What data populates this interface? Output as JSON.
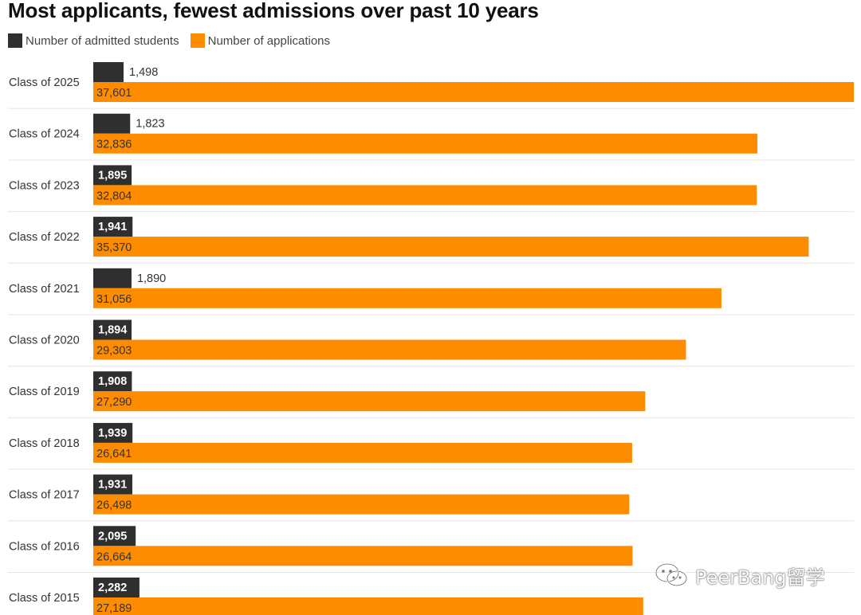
{
  "colors": {
    "admitted": "#2f2f2f",
    "applications": "#fd8c00",
    "divider": "#e6e6e6",
    "label": "#333333"
  },
  "watermark": {
    "text": "PeerBang留学",
    "icon": "chat-bubbles-icon"
  },
  "chart_data": {
    "type": "bar",
    "orientation": "horizontal",
    "title": "Most applicants, fewest admissions over past 10 years",
    "categories": [
      "Class of 2025",
      "Class of 2024",
      "Class of 2023",
      "Class of 2022",
      "Class of 2021",
      "Class of 2020",
      "Class of 2019",
      "Class of 2018",
      "Class of 2017",
      "Class of 2016",
      "Class of 2015"
    ],
    "series": [
      {
        "name": "Number of admitted students",
        "values": [
          1498,
          1823,
          1895,
          1941,
          1890,
          1894,
          1908,
          1939,
          1931,
          2095,
          2282
        ],
        "labels": [
          "1,498",
          "1,823",
          "1,895",
          "1,941",
          "1,890",
          "1,894",
          "1,908",
          "1,939",
          "1,931",
          "2,095",
          "2,282"
        ]
      },
      {
        "name": "Number of applications",
        "values": [
          37601,
          32836,
          32804,
          35370,
          31056,
          29303,
          27290,
          26641,
          26498,
          26664,
          27189
        ],
        "labels": [
          "37,601",
          "32,836",
          "32,804",
          "35,370",
          "31,056",
          "29,303",
          "27,290",
          "26,641",
          "26,498",
          "26,664",
          "27,189"
        ]
      }
    ],
    "xlim": [
      0,
      37601
    ],
    "legend_position": "top-left",
    "grid": false
  }
}
